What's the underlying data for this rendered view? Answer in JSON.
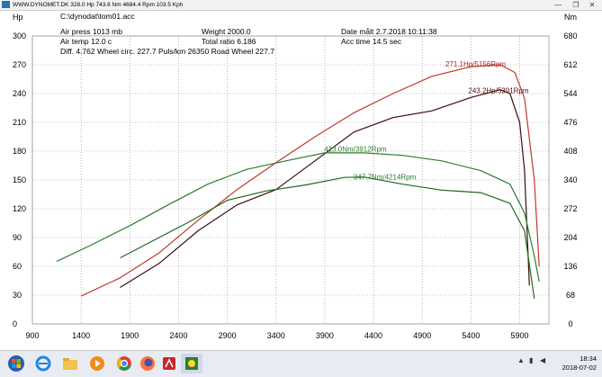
{
  "window": {
    "title": "WWW.DYNOMET.DK   328.0 Hp 743.6 Nm 4684.4 Rpm 103.5 Kph",
    "minimize_label": "—",
    "maximize_label": "❐",
    "close_label": "✕"
  },
  "info": {
    "file": "C:\\dynodat\\tom01.acc",
    "air_press": "Air press   1013 mb",
    "air_temp": "Air temp   12.0 c",
    "diff_line": "Diff.     4.762   Wheel circ. 227.7   Puls/km    26350   Road Wheel 227.7",
    "weight": "Weight    2000.0",
    "total_ratio": "Total ratio 6.186",
    "date": "Date målt 2.7.2018 10:11:38",
    "acc_time": "Acc time   14.5 sec"
  },
  "chart_data": {
    "type": "line",
    "left_axis_title": "Hp",
    "right_axis_title": "Nm",
    "x_ticks": [
      "900",
      "1400",
      "1900",
      "2400",
      "2900",
      "3400",
      "3900",
      "4400",
      "4900",
      "5400",
      "5900"
    ],
    "x_range": [
      900,
      6200
    ],
    "hp_ticks": [
      "0",
      "30",
      "60",
      "90",
      "120",
      "150",
      "180",
      "210",
      "240",
      "270",
      "300"
    ],
    "hp_range": [
      0,
      300
    ],
    "nm_ticks": [
      "0",
      "68",
      "136",
      "204",
      "272",
      "340",
      "408",
      "476",
      "544",
      "612",
      "680"
    ],
    "nm_range": [
      0,
      680
    ],
    "grid": true,
    "colors": {
      "hp_run1": "#c0392b",
      "hp_run2": "#3a0d10",
      "nm_run1": "#2e7d2e",
      "nm_run2": "#1d6a1d"
    },
    "series": [
      {
        "name": "hp_run1",
        "axis": "hp",
        "x": [
          1400,
          1800,
          2200,
          2600,
          3000,
          3400,
          3800,
          4200,
          4600,
          5000,
          5400,
          5700,
          5850,
          5950,
          6050,
          6100
        ],
        "y": [
          29,
          48,
          74,
          108,
          140,
          168,
          195,
          220,
          240,
          258,
          268,
          270,
          262,
          235,
          150,
          60
        ]
      },
      {
        "name": "hp_run2",
        "axis": "hp",
        "x": [
          1800,
          2200,
          2600,
          3000,
          3400,
          3800,
          4200,
          4600,
          5000,
          5400,
          5700,
          5800,
          5900,
          5950,
          6000
        ],
        "y": [
          38,
          63,
          97,
          124,
          140,
          170,
          200,
          215,
          222,
          236,
          244,
          240,
          210,
          160,
          40
        ]
      },
      {
        "name": "nm_run1",
        "axis": "nm",
        "x": [
          1150,
          1500,
          1900,
          2300,
          2700,
          3100,
          3500,
          3900,
          4300,
          4700,
          5100,
          5500,
          5800,
          5950,
          6050,
          6100
        ],
        "y": [
          148,
          186,
          232,
          282,
          330,
          365,
          385,
          404,
          404,
          398,
          385,
          362,
          330,
          262,
          160,
          100
        ]
      },
      {
        "name": "nm_run2",
        "axis": "nm",
        "x": [
          1800,
          2100,
          2500,
          2900,
          3300,
          3700,
          4100,
          4300,
          4700,
          5100,
          5500,
          5800,
          5950,
          6000,
          6050
        ],
        "y": [
          156,
          192,
          240,
          292,
          314,
          328,
          346,
          347,
          330,
          316,
          310,
          285,
          220,
          140,
          60
        ]
      }
    ],
    "annotations": [
      {
        "text": "271.1Hp/5156Rpm",
        "x": 5156,
        "axis": "hp",
        "y": 271.1,
        "color": "#b22222"
      },
      {
        "text": "243.2Hp/5391Rpm",
        "x": 5391,
        "axis": "hp",
        "y": 243.2,
        "color": "#5a0a14"
      },
      {
        "text": "413.0Nm/3912Rpm",
        "x": 3912,
        "axis": "nm",
        "y": 413.0,
        "color": "#2e7d2e"
      },
      {
        "text": "347.7Nm/4214Rpm",
        "x": 4214,
        "axis": "nm",
        "y": 347.7,
        "color": "#2e7d2e"
      }
    ]
  },
  "taskbar": {
    "clock_time": "18:34",
    "clock_date": "2018-07-02",
    "apps": [
      "start-icon",
      "internet-explorer-icon",
      "file-explorer-icon",
      "media-player-icon",
      "chrome-icon",
      "firefox-icon",
      "acrobat-icon",
      "dyno-app-icon"
    ]
  }
}
